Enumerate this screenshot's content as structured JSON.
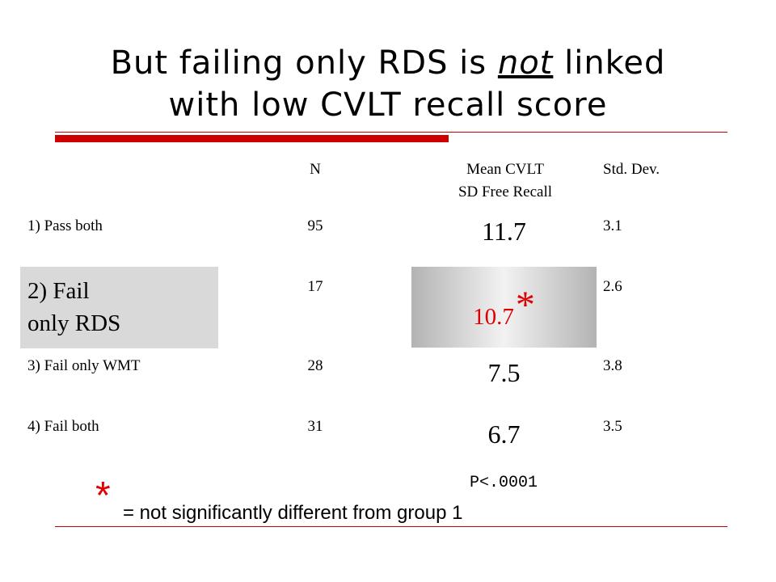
{
  "title": {
    "line1_before": "But failing only RDS is ",
    "line1_emph": "not",
    "line1_after": " linked",
    "line2": "with low CVLT recall score"
  },
  "table": {
    "headers": {
      "n": "N",
      "mean_line1": "Mean CVLT",
      "mean_line2": "SD Free Recall",
      "sd": "Std. Dev."
    },
    "rows": [
      {
        "group": "1) Pass both",
        "n": "95",
        "mean": "11.7",
        "sd": "3.1"
      },
      {
        "group_line1": "2) Fail",
        "group_line2": "only RDS",
        "n": "17",
        "mean": "10.7",
        "mean_marker": "*",
        "sd": "2.6"
      },
      {
        "group": "3) Fail only WMT",
        "n": "28",
        "mean": "7.5",
        "sd": "3.8"
      },
      {
        "group": "4) Fail both",
        "n": "31",
        "mean": "6.7",
        "sd": "3.5"
      }
    ]
  },
  "p_value": "P<.0001",
  "footnote": {
    "marker": "*",
    "text": "= not significantly different from group 1"
  },
  "colors": {
    "accent_red": "#cc0000",
    "highlight_gray": "#d9d9d9",
    "significance_red": "#e00000"
  }
}
